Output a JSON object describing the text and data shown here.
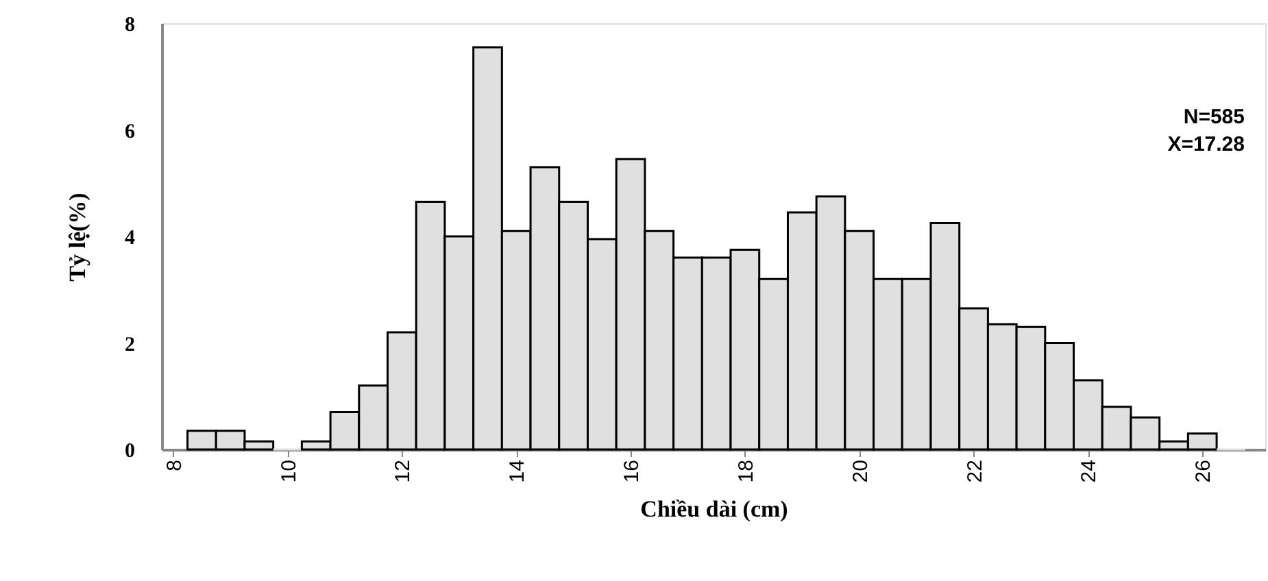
{
  "chart_data": {
    "type": "histogram",
    "xlabel": "Chiều dài (cm)",
    "ylabel": "Tỷ lệ(%)",
    "bins": [
      8.25,
      8.75,
      9.25,
      9.75,
      10.25,
      10.75,
      11.25,
      11.75,
      12.25,
      12.75,
      13.25,
      13.75,
      14.25,
      14.75,
      15.25,
      15.75,
      16.25,
      16.75,
      17.25,
      17.75,
      18.25,
      18.75,
      19.25,
      19.75,
      20.25,
      20.75,
      21.25,
      21.75,
      22.25,
      22.75,
      23.25,
      23.75,
      24.25,
      24.75,
      25.25,
      25.75,
      26.25,
      26.75
    ],
    "values": [
      0.35,
      0.35,
      0.15,
      0,
      0.15,
      0.7,
      1.2,
      2.2,
      4.65,
      4.0,
      7.55,
      4.1,
      5.3,
      4.65,
      3.95,
      5.45,
      4.1,
      3.6,
      3.6,
      3.75,
      3.2,
      4.45,
      4.75,
      4.1,
      3.2,
      3.2,
      4.25,
      2.65,
      2.35,
      2.3,
      2.0,
      1.3,
      0.8,
      0.6,
      0.15,
      0.3,
      0
    ],
    "color": "#e0e0e0",
    "xlim": [
      7.8,
      27.1
    ],
    "xticks": [
      8,
      10,
      12,
      14,
      16,
      18,
      20,
      22,
      24,
      26
    ],
    "ylim": [
      0,
      8
    ],
    "yticks": [
      0,
      2,
      4,
      6,
      8
    ],
    "grid": false,
    "annotations": [
      "N=585",
      "X=17.28"
    ]
  }
}
